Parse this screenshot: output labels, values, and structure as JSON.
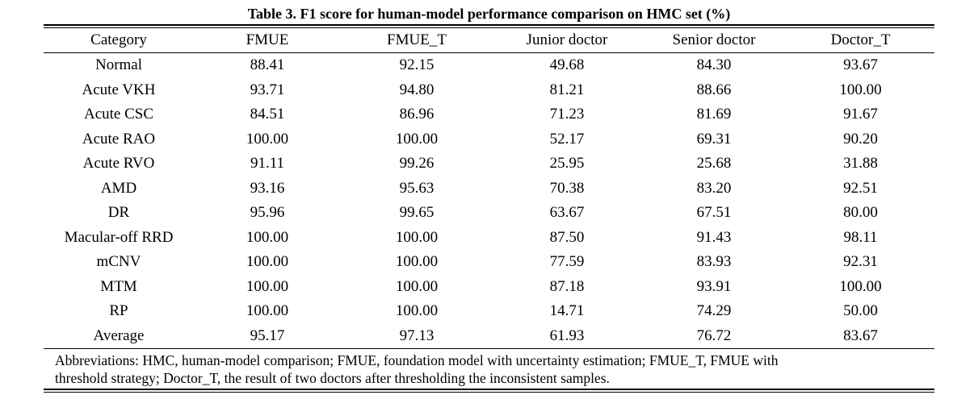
{
  "caption": "Table 3. F1 score for human-model performance comparison on HMC set (%)",
  "columns": [
    "Category",
    "FMUE",
    "FMUE_T",
    "Junior doctor",
    "Senior doctor",
    "Doctor_T"
  ],
  "rows": [
    [
      "Normal",
      "88.41",
      "92.15",
      "49.68",
      "84.30",
      "93.67"
    ],
    [
      "Acute VKH",
      "93.71",
      "94.80",
      "81.21",
      "88.66",
      "100.00"
    ],
    [
      "Acute CSC",
      "84.51",
      "86.96",
      "71.23",
      "81.69",
      "91.67"
    ],
    [
      "Acute RAO",
      "100.00",
      "100.00",
      "52.17",
      "69.31",
      "90.20"
    ],
    [
      "Acute RVO",
      "91.11",
      "99.26",
      "25.95",
      "25.68",
      "31.88"
    ],
    [
      "AMD",
      "93.16",
      "95.63",
      "70.38",
      "83.20",
      "92.51"
    ],
    [
      "DR",
      "95.96",
      "99.65",
      "63.67",
      "67.51",
      "80.00"
    ],
    [
      "Macular-off RRD",
      "100.00",
      "100.00",
      "87.50",
      "91.43",
      "98.11"
    ],
    [
      "mCNV",
      "100.00",
      "100.00",
      "77.59",
      "83.93",
      "92.31"
    ],
    [
      "MTM",
      "100.00",
      "100.00",
      "87.18",
      "93.91",
      "100.00"
    ],
    [
      "RP",
      "100.00",
      "100.00",
      "14.71",
      "74.29",
      "50.00"
    ],
    [
      "Average",
      "95.17",
      "97.13",
      "61.93",
      "76.72",
      "83.67"
    ]
  ],
  "notes": {
    "line1": "Abbreviations: HMC, human-model comparison; FMUE, foundation model with uncertainty estimation; FMUE_T, FMUE with",
    "line2": "threshold strategy; Doctor_T, the result of two doctors after thresholding the inconsistent samples."
  }
}
